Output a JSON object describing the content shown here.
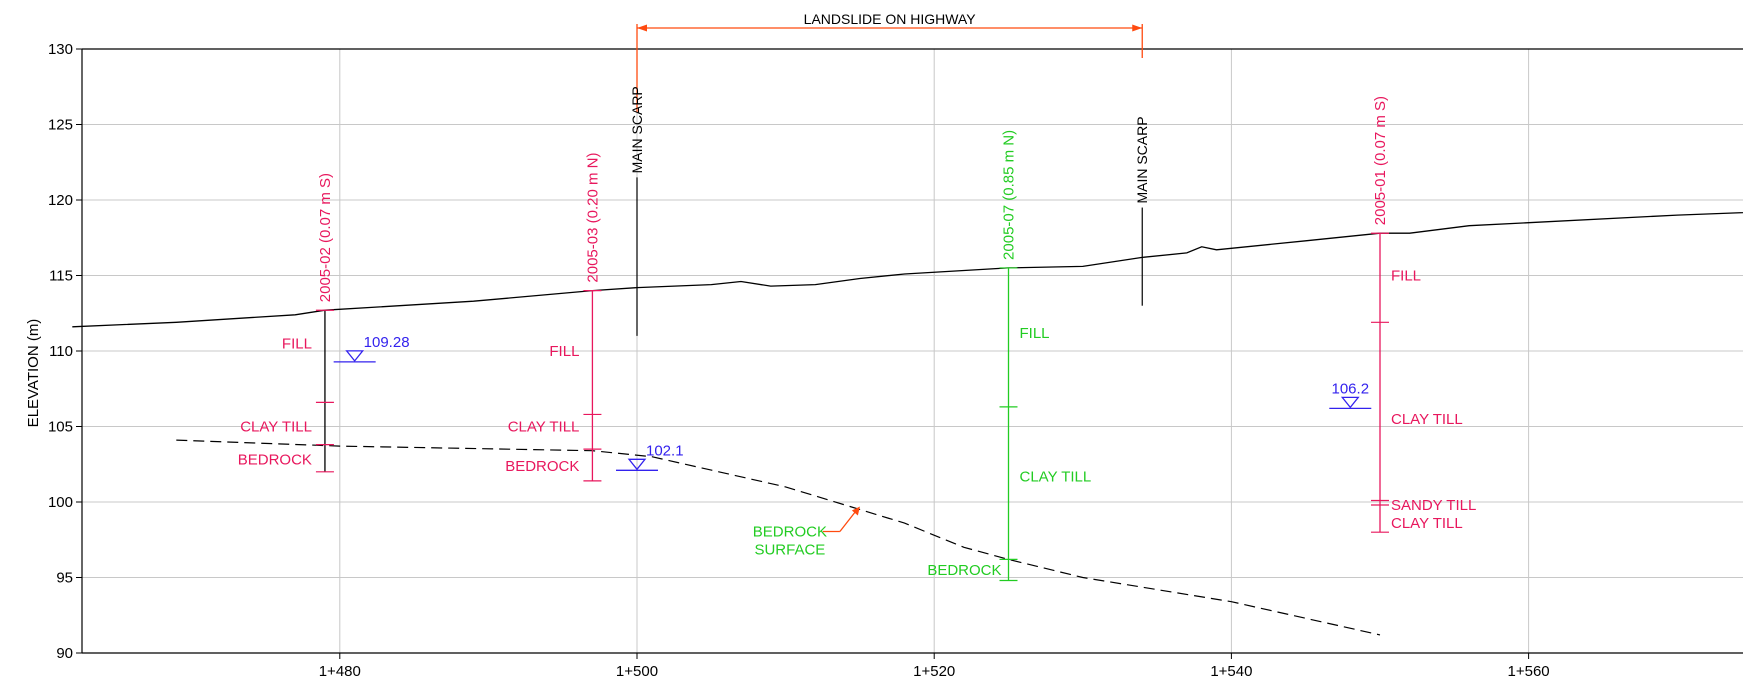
{
  "chart_data": {
    "type": "cross-section",
    "ylabel": "ELEVATION (m)",
    "ylim": [
      90,
      130
    ],
    "xlim": [
      1462,
      1578
    ],
    "x_ticks": [
      1480,
      1500,
      1520,
      1540,
      1560
    ],
    "x_tick_labels": [
      "1+480",
      "1+500",
      "1+520",
      "1+540",
      "1+560"
    ],
    "y_ticks": [
      90,
      95,
      100,
      105,
      110,
      115,
      120,
      125,
      130
    ],
    "grid": true,
    "ground_surface": [
      [
        1462,
        111.6
      ],
      [
        1469,
        111.9
      ],
      [
        1477,
        112.4
      ],
      [
        1479,
        112.7
      ],
      [
        1489,
        113.3
      ],
      [
        1497,
        114.0
      ],
      [
        1500,
        114.2
      ],
      [
        1505,
        114.4
      ],
      [
        1507,
        114.6
      ],
      [
        1509,
        114.3
      ],
      [
        1512,
        114.4
      ],
      [
        1515,
        114.8
      ],
      [
        1518,
        115.1
      ],
      [
        1525,
        115.5
      ],
      [
        1530,
        115.6
      ],
      [
        1534,
        116.2
      ],
      [
        1537,
        116.5
      ],
      [
        1538,
        116.9
      ],
      [
        1539,
        116.7
      ],
      [
        1545,
        117.3
      ],
      [
        1550,
        117.8
      ],
      [
        1552,
        117.8
      ],
      [
        1556,
        118.3
      ],
      [
        1560,
        118.5
      ],
      [
        1570,
        119.0
      ],
      [
        1578,
        119.3
      ]
    ],
    "bedrock_surface": [
      [
        1469,
        104.1
      ],
      [
        1480,
        103.7
      ],
      [
        1497,
        103.4
      ],
      [
        1501,
        103.0
      ],
      [
        1510,
        101.0
      ],
      [
        1518,
        98.6
      ],
      [
        1522,
        97.0
      ],
      [
        1525,
        96.2
      ],
      [
        1530,
        95.0
      ],
      [
        1540,
        93.4
      ],
      [
        1550,
        91.2
      ]
    ],
    "landslide_extent": {
      "label": "LANDSLIDE ON HIGHWAY",
      "from": 1500,
      "to": 1534
    },
    "main_scarps": [
      {
        "label": "MAIN SCARP",
        "x": 1500,
        "top": 121.5,
        "bottom": 111.0
      },
      {
        "label": "MAIN SCARP",
        "x": 1534,
        "top": 119.5,
        "bottom": 113.0
      }
    ],
    "boreholes": [
      {
        "label": "2005-02 (0.07 m S)",
        "x": 1479,
        "top": 112.7,
        "bottom": 102.0,
        "color": "#e8175d",
        "stem_color": "#000000",
        "layers": [
          {
            "name": "FILL",
            "at": 110.5
          },
          {
            "name": "CLAY TILL",
            "at": 105.0
          },
          {
            "name": "BEDROCK",
            "at": 102.8
          }
        ],
        "ticks": [
          106.6,
          103.8,
          102.0
        ]
      },
      {
        "label": "2005-03 (0.20 m N)",
        "x": 1497,
        "top": 114.0,
        "bottom": 101.4,
        "color": "#e8175d",
        "stem_color": "#e8175d",
        "layers": [
          {
            "name": "FILL",
            "at": 110.0
          },
          {
            "name": "CLAY TILL",
            "at": 105.0
          },
          {
            "name": "BEDROCK",
            "at": 102.4
          }
        ],
        "ticks": [
          105.8,
          103.5,
          101.4
        ]
      },
      {
        "label": "2005-07 (0.85 m N)",
        "x": 1525,
        "top": 115.5,
        "bottom": 94.8,
        "color": "#22cc22",
        "stem_color": "#22cc22",
        "layers": [
          {
            "name": "FILL",
            "at": 111.2
          },
          {
            "name": "CLAY TILL",
            "at": 101.7
          },
          {
            "name": "BEDROCK",
            "at": 95.5
          }
        ],
        "ticks": [
          106.3,
          96.2,
          94.8
        ]
      },
      {
        "label": "2005-01 (0.07 m S)",
        "x": 1550,
        "top": 117.8,
        "bottom": 98.0,
        "color": "#e8175d",
        "stem_color": "#e8175d",
        "layers": [
          {
            "name": "FILL",
            "at": 115.0
          },
          {
            "name": "CLAY TILL",
            "at": 105.5
          },
          {
            "name": "SANDY TILL",
            "at": 99.8
          },
          {
            "name": "CLAY TILL",
            "at": 98.6
          }
        ],
        "ticks": [
          111.9,
          100.1,
          99.8,
          98.0
        ]
      }
    ],
    "water_levels": [
      {
        "value": "109.28",
        "x": 1481,
        "y": 109.28
      },
      {
        "value": "102.1",
        "x": 1500,
        "y": 102.1
      },
      {
        "value": "106.2",
        "x": 1548,
        "y": 106.2
      }
    ],
    "callout": {
      "lines": [
        "BEDROCK",
        "SURFACE"
      ],
      "x": 1515,
      "y": 99.7
    }
  },
  "colors": {
    "axis": "#000000",
    "grid": "#c8c8c8",
    "borehole_red": "#e8175d",
    "borehole_green": "#22cc22",
    "water_blue": "#3322ee",
    "landslide_orange": "#ff4a0f",
    "scarp": "#000000"
  }
}
